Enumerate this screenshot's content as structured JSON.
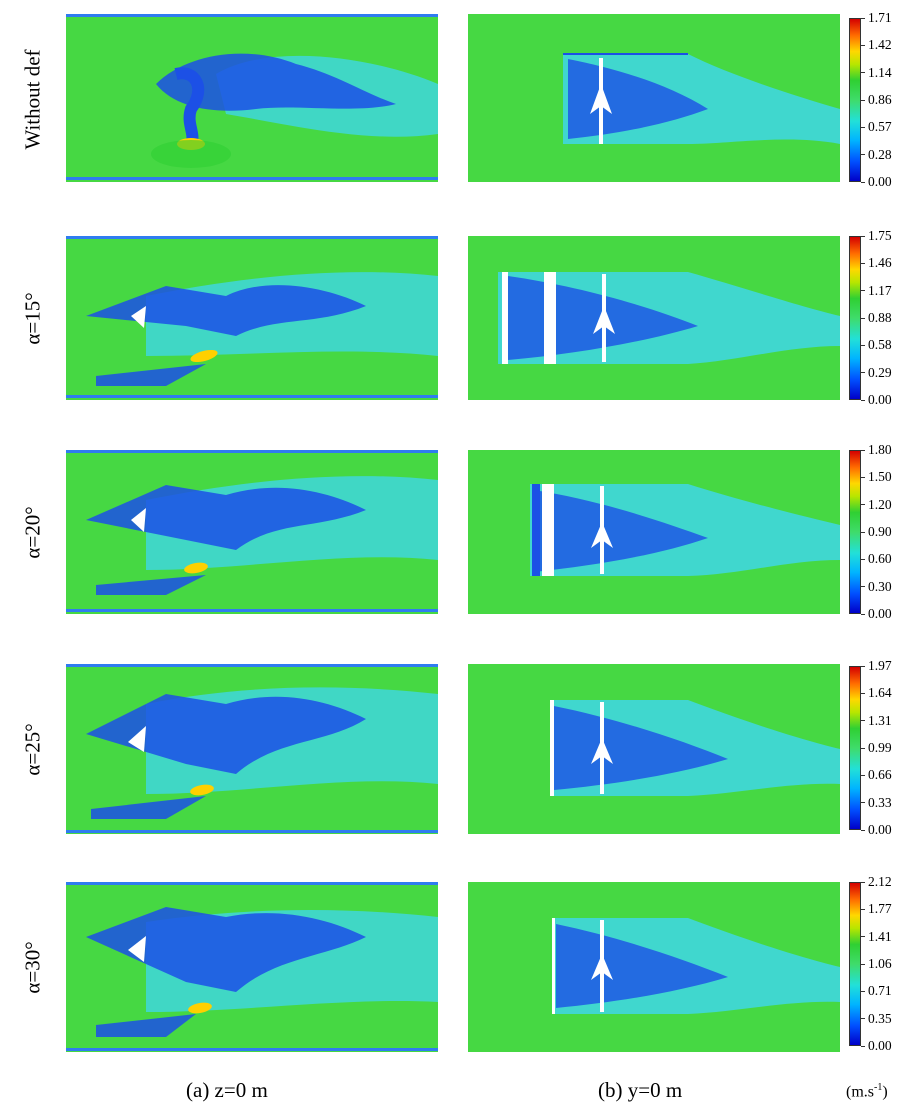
{
  "rows": [
    {
      "label": "Without def",
      "ticks": [
        "1.71",
        "1.42",
        "1.14",
        "0.86",
        "0.57",
        "0.28",
        "0.00"
      ]
    },
    {
      "label": "α=15°",
      "ticks": [
        "1.75",
        "1.46",
        "1.17",
        "0.88",
        "0.58",
        "0.29",
        "0.00"
      ]
    },
    {
      "label": "α=20°",
      "ticks": [
        "1.80",
        "1.50",
        "1.20",
        "0.90",
        "0.60",
        "0.30",
        "0.00"
      ]
    },
    {
      "label": "α=25°",
      "ticks": [
        "1.97",
        "1.64",
        "1.31",
        "0.99",
        "0.66",
        "0.33",
        "0.00"
      ]
    },
    {
      "label": "α=30°",
      "ticks": [
        "2.12",
        "1.77",
        "1.41",
        "1.06",
        "0.71",
        "0.35",
        "0.00"
      ]
    }
  ],
  "captions": {
    "a": "(a)  z=0 m",
    "b": "(b)  y=0 m"
  },
  "unit": {
    "base": "(m.s",
    "exp": "-1",
    "close": ")"
  },
  "colors": {
    "field": "#46d843",
    "wake_light": "#3fd7e6",
    "wake_dark": "#1c50e6",
    "high": "#ffd000",
    "wall": "#2f7cf0"
  }
}
